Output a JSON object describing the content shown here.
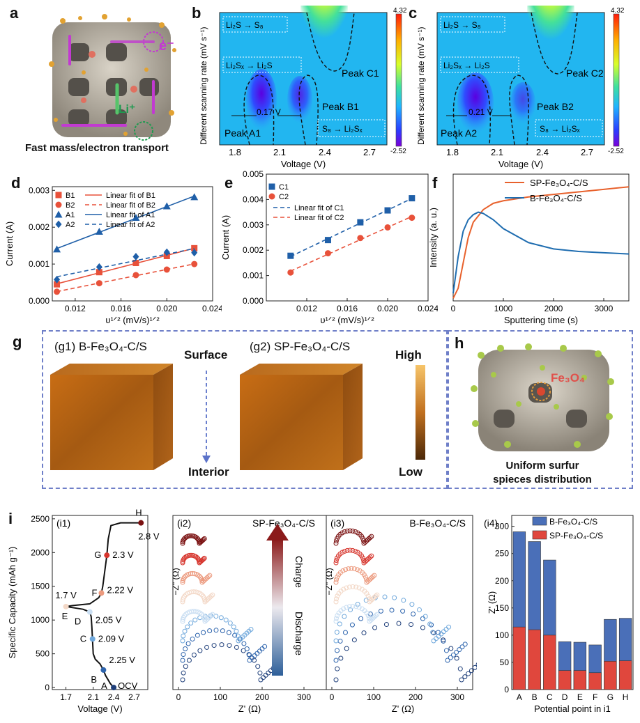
{
  "panels": {
    "a": {
      "letter": "a",
      "caption": "Fast mass/electron transport",
      "e_label": "e⁻",
      "li_label": "Li⁺"
    },
    "b": {
      "letter": "b",
      "ylabel": "Different scanning rate (mV s⁻¹)",
      "xlabel": "Voltage (V)",
      "xticks": [
        "1.8",
        "2.1",
        "2.4",
        "2.7"
      ],
      "cbar_max": "4.32",
      "cbar_min": "-2.52",
      "label_top": "Li₂S → S₈",
      "label_mid": "Li₂Sₓ → Li₂S",
      "label_bot": "S₈ → Li₂Sₓ",
      "peak_c": "Peak C1",
      "peak_b": "Peak B1",
      "peak_a": "Peak A1",
      "gap": "0.17 V"
    },
    "c": {
      "letter": "c",
      "ylabel": "Different scanning rate (mV s⁻¹)",
      "xlabel": "Voltage (V)",
      "xticks": [
        "1.8",
        "2.1",
        "2.4",
        "2.7"
      ],
      "cbar_max": "4.32",
      "cbar_min": "-2.52",
      "label_top": "Li₂S → S₈",
      "label_mid": "Li₂Sₓ → Li₂S",
      "label_bot": "S₈ → Li₂Sₓ",
      "peak_c": "Peak C2",
      "peak_b": "Peak B2",
      "peak_a": "Peak A2",
      "gap": "0.21 V"
    },
    "g": {
      "letter": "g",
      "g1": "(g1) B-Fe₃O₄-C/S",
      "g2": "(g2) SP-Fe₃O₄-C/S",
      "surface": "Surface",
      "interior": "Interior",
      "high": "High",
      "low": "Low"
    },
    "h": {
      "letter": "h",
      "fe3o4": "Fe₃O₄",
      "caption1": "Uniform surfur",
      "caption2": "spieces distribution"
    },
    "i": {
      "letter": "i"
    }
  },
  "chart_data": [
    {
      "id": "d",
      "type": "scatter",
      "letter": "d",
      "xlabel": "υ¹ᐟ² (mV/s)¹ᐟ²",
      "ylabel": "Current (A)",
      "xlim": [
        0.01,
        0.024
      ],
      "ylim": [
        0,
        0.0031
      ],
      "xticks": [
        "0.012",
        "0.016",
        "0.020",
        "0.024"
      ],
      "yticks": [
        "0.000",
        "0.001",
        "0.002",
        "0.003"
      ],
      "x": [
        0.0104,
        0.0141,
        0.0173,
        0.02,
        0.0224
      ],
      "series": [
        {
          "name": "B1",
          "fit": "Linear fit of B1",
          "color": "#e8513a",
          "marker": "square",
          "values": [
            0.00045,
            0.00078,
            0.00103,
            0.00122,
            0.00143
          ]
        },
        {
          "name": "B2",
          "fit": "Linear fit of B2",
          "color": "#e8513a",
          "marker": "circle",
          "dashed": true,
          "values": [
            0.00025,
            0.00048,
            0.0007,
            0.00085,
            0.001
          ]
        },
        {
          "name": "A1",
          "fit": "Linear fit of A1",
          "color": "#1f5fa8",
          "marker": "triangle",
          "values": [
            0.0014,
            0.00188,
            0.00226,
            0.00257,
            0.00282
          ]
        },
        {
          "name": "A2",
          "fit": "Linear fit of A2",
          "color": "#1f5fa8",
          "marker": "diamond",
          "dashed": true,
          "values": [
            0.00058,
            0.00092,
            0.0012,
            0.00132,
            0.00131
          ]
        }
      ]
    },
    {
      "id": "e",
      "type": "scatter",
      "letter": "e",
      "xlabel": "υ¹ᐟ² (mV/s)¹ᐟ²",
      "ylabel": "Current (A)",
      "xlim": [
        0.008,
        0.024
      ],
      "ylim": [
        0,
        0.005
      ],
      "xticks": [
        "0.012",
        "0.016",
        "0.020",
        "0.024"
      ],
      "yticks": [
        "0.000",
        "0.001",
        "0.002",
        "0.003",
        "0.004",
        "0.005"
      ],
      "x": [
        0.0104,
        0.0141,
        0.0173,
        0.02,
        0.0224
      ],
      "series": [
        {
          "name": "C1",
          "fit": "Linear fit of C1",
          "color": "#1f5fa8",
          "marker": "square",
          "dashed": true,
          "values": [
            0.00178,
            0.0024,
            0.0031,
            0.00357,
            0.00405
          ]
        },
        {
          "name": "C2",
          "fit": "Linear fit of C2",
          "color": "#e8513a",
          "marker": "circle",
          "dashed": true,
          "values": [
            0.00112,
            0.00188,
            0.00248,
            0.0029,
            0.00328
          ]
        }
      ]
    },
    {
      "id": "f",
      "type": "line",
      "letter": "f",
      "xlabel": "Sputtering time (s)",
      "ylabel": "Intensity (a. u.)",
      "xlim": [
        0,
        3500
      ],
      "xticks": [
        "0",
        "1000",
        "2000",
        "3000"
      ],
      "series": [
        {
          "name": "SP-Fe₃O₄-C/S",
          "color": "#e8612c",
          "x": [
            0,
            100,
            200,
            300,
            400,
            600,
            800,
            1000,
            1500,
            2000,
            2500,
            3000,
            3500
          ],
          "values": [
            0.02,
            0.1,
            0.3,
            0.5,
            0.62,
            0.72,
            0.77,
            0.79,
            0.82,
            0.84,
            0.86,
            0.88,
            0.9
          ]
        },
        {
          "name": "B-Fe₃O₄-C/S",
          "color": "#1f6db0",
          "x": [
            0,
            100,
            200,
            300,
            400,
            500,
            600,
            800,
            1000,
            1500,
            2000,
            2500,
            3000,
            3500
          ],
          "values": [
            0.06,
            0.35,
            0.55,
            0.64,
            0.68,
            0.7,
            0.69,
            0.64,
            0.57,
            0.46,
            0.41,
            0.39,
            0.38,
            0.37
          ]
        }
      ]
    },
    {
      "id": "i1",
      "type": "line",
      "tag": "(i1)",
      "xlabel": "Voltage (V)",
      "ylabel": "Specific Capacity (mAh g⁻¹)",
      "xlim": [
        1.5,
        2.9
      ],
      "ylim": [
        -30,
        2550
      ],
      "xticks": [
        "1.7",
        "2.1",
        "2.4",
        "2.7"
      ],
      "yticks": [
        "0",
        "500",
        "1000",
        "1500",
        "2000",
        "2500"
      ],
      "curve_v": [
        2.4,
        2.35,
        2.28,
        2.25,
        2.2,
        2.13,
        2.1,
        2.09,
        2.08,
        2.07,
        2.05,
        1.95,
        1.7,
        1.8,
        2.05,
        2.18,
        2.22,
        2.24,
        2.3,
        2.32,
        2.36,
        2.5,
        2.8
      ],
      "curve_q": [
        0,
        60,
        180,
        260,
        350,
        420,
        500,
        700,
        900,
        1050,
        1120,
        1160,
        1200,
        1215,
        1240,
        1330,
        1400,
        1500,
        1960,
        2200,
        2400,
        2440,
        2440
      ],
      "points": [
        {
          "label": "A",
          "v": 2.4,
          "q": 0,
          "value": "OCV",
          "color": "#1f3f7a"
        },
        {
          "label": "B",
          "v": 2.25,
          "q": 260,
          "value": "2.25 V",
          "color": "#2d64ad"
        },
        {
          "label": "C",
          "v": 2.09,
          "q": 720,
          "value": "2.09 V",
          "color": "#6fa8dc"
        },
        {
          "label": "D",
          "v": 2.05,
          "q": 1120,
          "value": "2.05 V",
          "color": "#c9def2"
        },
        {
          "label": "E",
          "v": 1.7,
          "q": 1200,
          "value": "1.7 V",
          "color": "#f3d8c7"
        },
        {
          "label": "F",
          "v": 2.22,
          "q": 1400,
          "value": "2.22 V",
          "color": "#ec9a7e"
        },
        {
          "label": "G",
          "v": 2.3,
          "q": 1960,
          "value": "2.3 V",
          "color": "#d6342c"
        },
        {
          "label": "H",
          "v": 2.8,
          "q": 2440,
          "value": "2.8 V",
          "color": "#7a1010"
        }
      ]
    },
    {
      "id": "i2",
      "type": "scatter",
      "tag": "(i2)",
      "title": "SP-Fe₃O₄-C/S",
      "xlabel": "Z' (Ω)",
      "ylabel": "−Z'' (Ω)",
      "xticks": [
        "0",
        "100",
        "200",
        "300"
      ],
      "arrow_top": "Charge",
      "arrow_bottom": "Discharge"
    },
    {
      "id": "i3",
      "type": "scatter",
      "tag": "(i3)",
      "title": "B-Fe₃O₄-C/S",
      "xlabel": "Z' (Ω)",
      "ylabel": "−Z'' (Ω)",
      "xticks": [
        "0",
        "100",
        "200",
        "300"
      ]
    },
    {
      "id": "i4",
      "type": "bar",
      "tag": "(i4)",
      "xlabel": "Potential point in i1",
      "ylabel": "Z' (Ω)",
      "ylim": [
        0,
        320
      ],
      "yticks": [
        "0",
        "50",
        "100",
        "150",
        "200",
        "250",
        "300"
      ],
      "categories": [
        "A",
        "B",
        "C",
        "D",
        "E",
        "F",
        "G",
        "H"
      ],
      "series": [
        {
          "name": "B-Fe₃O₄-C/S",
          "color": "#4a6fb8",
          "values": [
            290,
            272,
            238,
            88,
            87,
            82,
            129,
            131
          ]
        },
        {
          "name": "SP-Fe₃O₄-C/S",
          "color": "#e0473d",
          "values": [
            115,
            110,
            100,
            35,
            35,
            31,
            52,
            53
          ]
        }
      ]
    }
  ]
}
